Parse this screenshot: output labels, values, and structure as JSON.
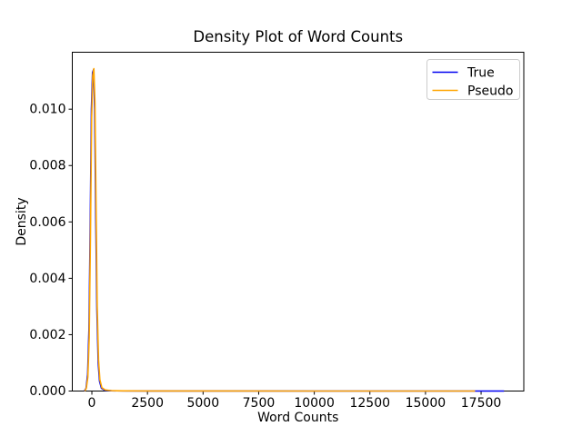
{
  "window": {
    "background": "#ffffff"
  },
  "chart_data": {
    "type": "line",
    "title": "Density Plot of Word Counts",
    "xlabel": "Word Counts",
    "ylabel": "Density",
    "xlim": [
      -880,
      19420
    ],
    "ylim": [
      0,
      0.01202
    ],
    "x_ticks": [
      0,
      2500,
      5000,
      7500,
      10000,
      12500,
      15000,
      17500
    ],
    "x_tick_labels": [
      "0",
      "2500",
      "5000",
      "7500",
      "10000",
      "12500",
      "15000",
      "17500"
    ],
    "y_ticks": [
      0,
      0.002,
      0.004,
      0.006,
      0.008,
      0.01
    ],
    "y_tick_labels": [
      "0.000",
      "0.002",
      "0.004",
      "0.006",
      "0.008",
      "0.010"
    ],
    "grid": false,
    "frame_color": "#000000",
    "legend": {
      "position": "upper right",
      "frame_color": "#cccccc",
      "background": "#ffffff"
    },
    "series": [
      {
        "name": "True",
        "color": "#0000f0",
        "peak": {
          "x": 75,
          "y": 0.0114
        },
        "points": [
          [
            -340,
            0
          ],
          [
            -260,
            0.0001
          ],
          [
            -190,
            0.0006
          ],
          [
            -130,
            0.0022
          ],
          [
            -75,
            0.0058
          ],
          [
            -20,
            0.01
          ],
          [
            30,
            0.0113
          ],
          [
            75,
            0.0114
          ],
          [
            125,
            0.01
          ],
          [
            175,
            0.0062
          ],
          [
            225,
            0.0029
          ],
          [
            285,
            0.001
          ],
          [
            345,
            0.00035
          ],
          [
            430,
            0.0001
          ],
          [
            580,
            3e-05
          ],
          [
            880,
            1e-05
          ],
          [
            1400,
            4e-06
          ],
          [
            2500,
            2e-06
          ],
          [
            5000,
            1e-06
          ],
          [
            10000,
            0
          ],
          [
            14000,
            0
          ],
          [
            18530,
            0
          ]
        ]
      },
      {
        "name": "Pseudo",
        "color": "#ffa500",
        "peak": {
          "x": 95,
          "y": 0.01144
        },
        "points": [
          [
            -320,
            0
          ],
          [
            -250,
            0.0001
          ],
          [
            -180,
            0.0005
          ],
          [
            -120,
            0.0019
          ],
          [
            -65,
            0.0054
          ],
          [
            -10,
            0.0097
          ],
          [
            40,
            0.0112
          ],
          [
            90,
            0.01144
          ],
          [
            140,
            0.0102
          ],
          [
            190,
            0.0065
          ],
          [
            240,
            0.003
          ],
          [
            300,
            0.0011
          ],
          [
            360,
            0.0004
          ],
          [
            450,
            0.00012
          ],
          [
            600,
            4e-05
          ],
          [
            900,
            1.2e-05
          ],
          [
            1400,
            5e-06
          ],
          [
            2500,
            2e-06
          ],
          [
            5000,
            1e-06
          ],
          [
            10000,
            0
          ],
          [
            14000,
            0
          ],
          [
            17230,
            0
          ]
        ]
      }
    ]
  }
}
